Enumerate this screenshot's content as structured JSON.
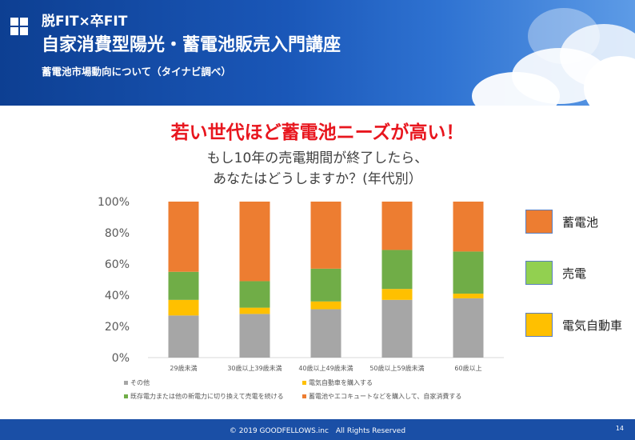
{
  "header": {
    "title_line1": "脱FIT×卒FIT",
    "title_line2": "自家消費型陽光・蓄電池販売入門講座",
    "subtitle": "蓄電池市場動向について（タイナビ調べ）"
  },
  "headline": "若い世代ほど蓄電池ニーズが高い！",
  "question_line1": "もし10年の売電期間が終了したら、",
  "question_line2": "あなたはどうしますか？(年代別）",
  "chart_data": {
    "type": "bar",
    "stacked": true,
    "categories": [
      "29歳未満",
      "30歳以上39歳未満",
      "40歳以上49歳未満",
      "50歳以上59歳未満",
      "60歳以上"
    ],
    "series": [
      {
        "name": "その他",
        "color": "#a6a6a6",
        "values": [
          27,
          28,
          31,
          37,
          38
        ]
      },
      {
        "name": "電気自動車を購入する",
        "color": "#ffc000",
        "values": [
          10,
          4,
          5,
          7,
          3
        ]
      },
      {
        "name": "既存電力または他の新電力に切り換えて売電を続ける",
        "color": "#70ad47",
        "values": [
          18,
          17,
          21,
          25,
          27
        ]
      },
      {
        "name": "蓄電池やエコキュートなどを購入して、自家消費する",
        "color": "#ed7d31",
        "values": [
          45,
          51,
          43,
          31,
          32
        ]
      }
    ],
    "y_ticks": [
      "0%",
      "20%",
      "40%",
      "60%",
      "80%",
      "100%"
    ],
    "ylim": [
      0,
      100
    ],
    "grid": false
  },
  "side_legend": [
    {
      "label": "蓄電池",
      "color": "#ed7d31"
    },
    {
      "label": "売電",
      "color": "#92d050"
    },
    {
      "label": "電気自動車",
      "color": "#ffc000"
    }
  ],
  "footer": {
    "copyright": "© 2019 GOODFELLOWS.inc　All Rights Reserved",
    "page_number": "14"
  }
}
